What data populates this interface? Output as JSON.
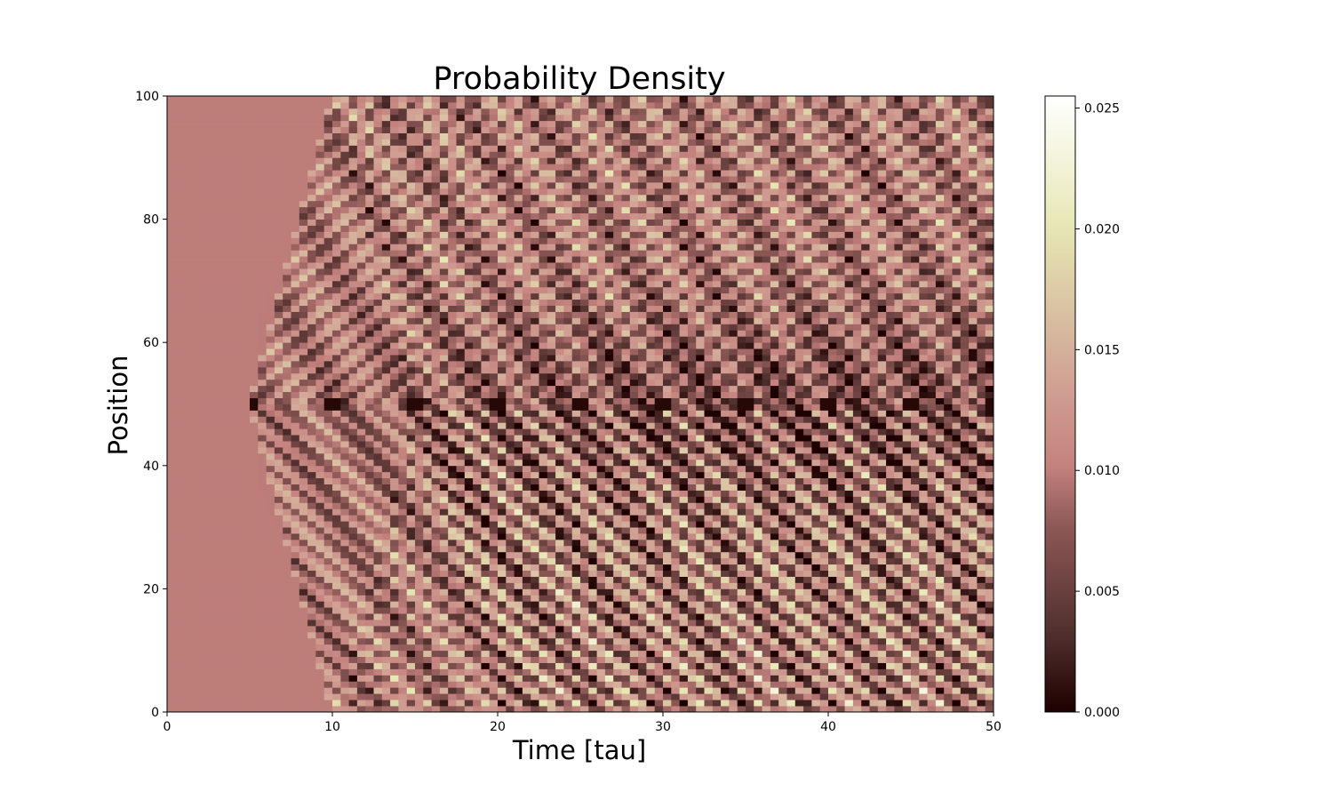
{
  "chart_data": {
    "type": "heatmap",
    "title": "Probability Density",
    "xlabel": "Time [tau]",
    "ylabel": "Position",
    "xlim": [
      0,
      50
    ],
    "ylim": [
      0,
      100
    ],
    "xticks": [
      "0",
      "10",
      "20",
      "30",
      "40",
      "50"
    ],
    "yticks": [
      "0",
      "20",
      "40",
      "60",
      "80",
      "100"
    ],
    "colorbar": {
      "range": [
        0.0,
        0.0255
      ],
      "ticks": [
        "0.000",
        "0.005",
        "0.010",
        "0.015",
        "0.020",
        "0.025"
      ]
    },
    "colormap": "pink",
    "background_value": 0.0099,
    "grid": false,
    "source": {
      "position": 50,
      "pulse_times": [
        5,
        10,
        15,
        20,
        25,
        30,
        35,
        40,
        45,
        50
      ]
    },
    "wavefront_speed": 10,
    "boundaries": [
      0,
      100
    ]
  }
}
